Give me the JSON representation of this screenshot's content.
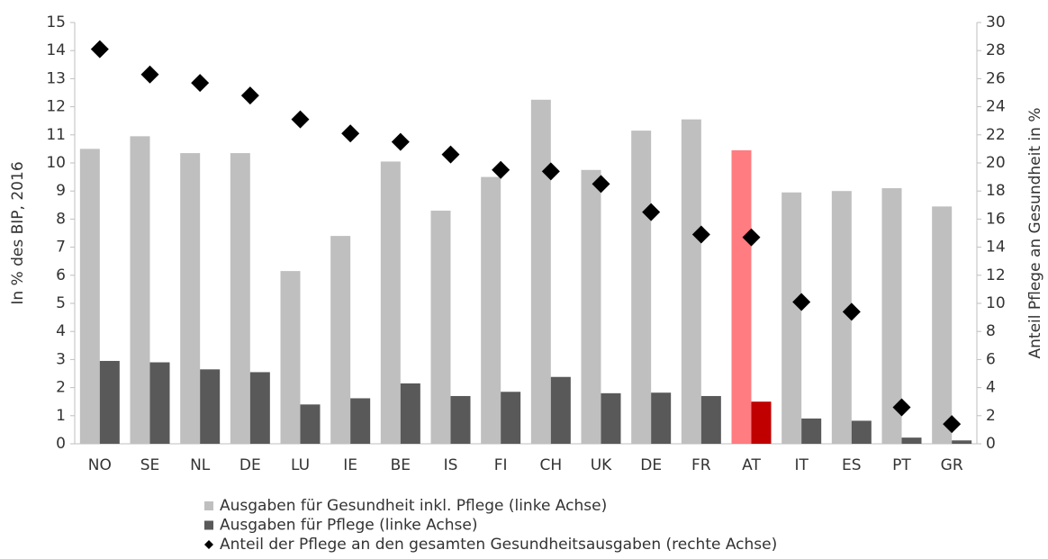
{
  "chart_data": {
    "type": "bar_scatter",
    "categories": [
      "NO",
      "SE",
      "NL",
      "DE",
      "LU",
      "IE",
      "BE",
      "IS",
      "FI",
      "CH",
      "UK",
      "DE",
      "FR",
      "AT",
      "IT",
      "ES",
      "PT",
      "GR"
    ],
    "ylabel": "In % des BIP, 2016",
    "y2label": "Anteil Pflege an Gesundheit in %",
    "ylim": [
      0,
      15
    ],
    "yticks": [
      0,
      1,
      2,
      3,
      4,
      5,
      6,
      7,
      8,
      9,
      10,
      11,
      12,
      13,
      14,
      15
    ],
    "y2lim": [
      0,
      30
    ],
    "y2ticks": [
      0,
      2,
      4,
      6,
      8,
      10,
      12,
      14,
      16,
      18,
      20,
      22,
      24,
      26,
      28,
      30
    ],
    "series": [
      {
        "name": "Ausgaben für Gesundheit inkl. Pflege (linke Achse)",
        "kind": "bar",
        "color": "#bfbfbf",
        "colors": [
          "#bfbfbf",
          "#bfbfbf",
          "#bfbfbf",
          "#bfbfbf",
          "#bfbfbf",
          "#bfbfbf",
          "#bfbfbf",
          "#bfbfbf",
          "#bfbfbf",
          "#bfbfbf",
          "#bfbfbf",
          "#bfbfbf",
          "#bfbfbf",
          "#ff7c80",
          "#bfbfbf",
          "#bfbfbf",
          "#bfbfbf",
          "#bfbfbf"
        ],
        "values": [
          10.5,
          10.95,
          10.35,
          10.35,
          6.15,
          7.4,
          10.05,
          8.3,
          9.5,
          12.25,
          9.75,
          11.15,
          11.55,
          10.45,
          8.95,
          9.0,
          9.1,
          8.45
        ]
      },
      {
        "name": "Ausgaben für Pflege (linke Achse)",
        "kind": "bar",
        "color": "#595959",
        "colors": [
          "#595959",
          "#595959",
          "#595959",
          "#595959",
          "#595959",
          "#595959",
          "#595959",
          "#595959",
          "#595959",
          "#595959",
          "#595959",
          "#595959",
          "#595959",
          "#c00000",
          "#595959",
          "#595959",
          "#595959",
          "#595959"
        ],
        "values": [
          2.95,
          2.9,
          2.65,
          2.55,
          1.4,
          1.62,
          2.15,
          1.7,
          1.85,
          2.38,
          1.8,
          1.82,
          1.7,
          1.5,
          0.9,
          0.82,
          0.22,
          0.12
        ]
      },
      {
        "name": "Anteil der Pflege an den gesamten Gesundheitsausgaben (rechte Achse)",
        "kind": "scatter",
        "axis": "y2",
        "color": "#000000",
        "values": [
          28.1,
          26.3,
          25.7,
          24.8,
          23.1,
          22.1,
          21.5,
          20.6,
          19.5,
          19.4,
          18.5,
          16.5,
          14.9,
          14.7,
          10.1,
          9.4,
          2.6,
          1.4
        ]
      }
    ]
  }
}
